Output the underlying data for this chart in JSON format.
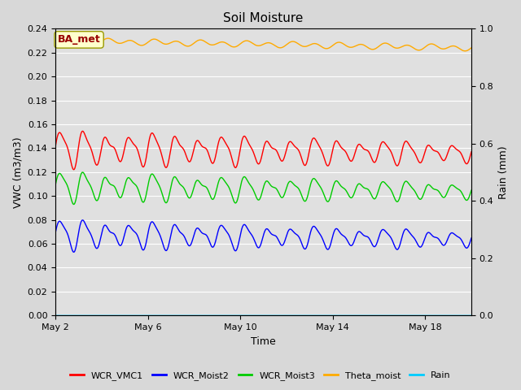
{
  "title": "Soil Moisture",
  "xlabel": "Time",
  "ylabel_left": "VWC (m3/m3)",
  "ylabel_right": "Rain (mm)",
  "ylim_left": [
    0.0,
    0.24
  ],
  "ylim_right": [
    0.0,
    1.0
  ],
  "yticks_left": [
    0.0,
    0.02,
    0.04,
    0.06,
    0.08,
    0.1,
    0.12,
    0.14,
    0.16,
    0.18,
    0.2,
    0.22,
    0.24
  ],
  "yticks_right": [
    0.0,
    0.2,
    0.4,
    0.6,
    0.8,
    1.0
  ],
  "xtick_labels": [
    "May 2",
    "May 6",
    "May 10",
    "May 14",
    "May 18"
  ],
  "fig_bg_color": "#d8d8d8",
  "plot_bg_color": "#e0e0e0",
  "grid_color": "#ffffff",
  "annotation_text": "BA_met",
  "annotation_bg": "#ffffcc",
  "annotation_border": "#999900",
  "annotation_text_color": "#990000",
  "line_colors": {
    "WCR_VMC1": "#ff0000",
    "WCR_Moist2": "#0000ff",
    "WCR_Moist3": "#00cc00",
    "Theta_moist": "#ffaa00",
    "Rain": "#00ccff"
  },
  "n_days": 18,
  "n_points": 1080,
  "wcr_vmc1_base": 0.14,
  "wcr_moist2_base": 0.068,
  "wcr_moist3_base": 0.108,
  "theta_moist_base": 0.23,
  "rain_value": 0.0,
  "period_hours": 24
}
